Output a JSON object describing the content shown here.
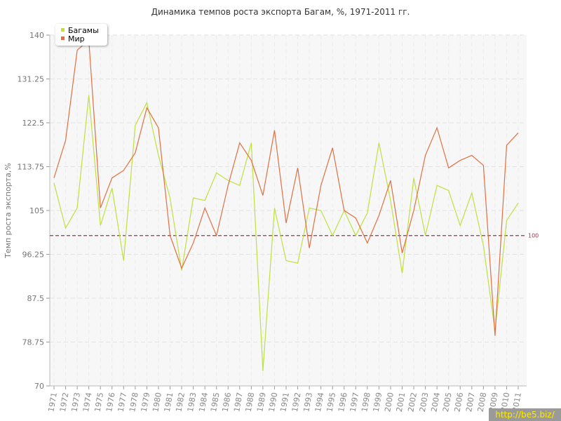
{
  "chart_data": {
    "type": "line",
    "title": "Динамика темпов роста экспорта Багам, %, 1971-2011 гг.",
    "ylabel": "Темп роста экспорта,%",
    "xlabel": "",
    "ylim": [
      70,
      140
    ],
    "yticks": [
      "70",
      "78.75",
      "87.5",
      "96.25",
      "105",
      "113.75",
      "122.5",
      "131.25",
      "140"
    ],
    "categories": [
      "1971",
      "1972",
      "1973",
      "1974",
      "1975",
      "1976",
      "1977",
      "1978",
      "1979",
      "1980",
      "1981",
      "1982",
      "1983",
      "1984",
      "1985",
      "1986",
      "1987",
      "1988",
      "1989",
      "1990",
      "1991",
      "1992",
      "1993",
      "1994",
      "1995",
      "1996",
      "1997",
      "1998",
      "1999",
      "2000",
      "2001",
      "2002",
      "2003",
      "2004",
      "2005",
      "2006",
      "2007",
      "2008",
      "2009",
      "2010",
      "2011"
    ],
    "series": [
      {
        "name": "Багамы",
        "color": "#bfe040",
        "values": [
          110.5,
          101.5,
          105.5,
          128,
          102,
          109.5,
          95,
          122,
          126.5,
          116,
          107.5,
          93,
          107.5,
          107,
          112.5,
          111,
          110,
          118.5,
          73,
          105.5,
          95,
          94.5,
          105.5,
          105,
          100,
          105,
          100,
          104.5,
          118.5,
          107,
          92.5,
          111.5,
          100,
          110,
          109,
          102,
          108.5,
          98,
          81,
          103,
          106.5
        ]
      },
      {
        "name": "Мир",
        "color": "#e07040",
        "values": [
          111.5,
          119,
          137,
          139,
          105.5,
          111.5,
          113,
          116.5,
          125.5,
          121.5,
          100,
          93.5,
          98.5,
          105.5,
          100,
          110,
          118.5,
          115,
          108,
          121,
          102.5,
          113.5,
          97.5,
          110,
          117.5,
          105,
          103.5,
          98.5,
          104,
          111,
          96.5,
          105,
          116,
          121.5,
          113.5,
          115,
          116,
          114,
          80,
          118,
          120.5
        ]
      }
    ],
    "reference_line": {
      "value": 100,
      "label": "100",
      "color": "#a0304a"
    },
    "legend_position": "top-left",
    "grid": true
  },
  "legend": {
    "items": [
      {
        "label": "Багамы",
        "color": "#bfe040"
      },
      {
        "label": "Мир",
        "color": "#e07040"
      }
    ]
  },
  "watermark": "http://be5.biz/"
}
